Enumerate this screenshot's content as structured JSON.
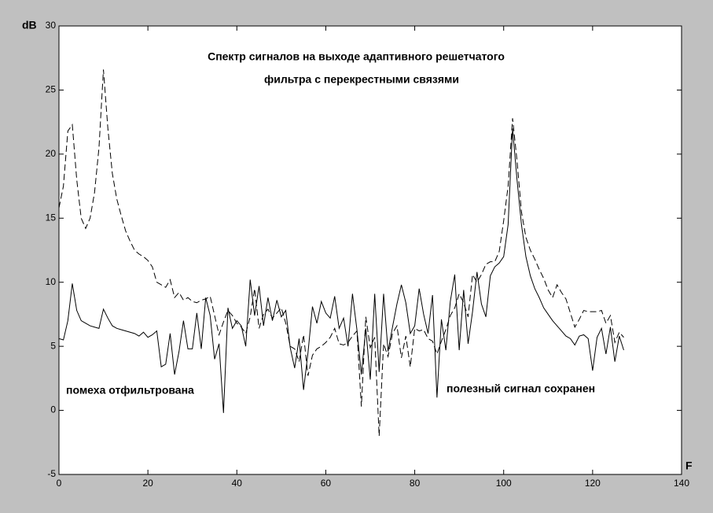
{
  "chart_data": {
    "type": "line",
    "title": [
      "Спектр сигналов на выходе адаптивного решетчатого",
      "фильтра с перекрестными связями"
    ],
    "xlabel": "F",
    "ylabel": "dB",
    "annotations": [
      "помеха отфильтрована",
      "полезный сигнал сохранен"
    ],
    "xlim": [
      0,
      140
    ],
    "xticks": [
      0,
      20,
      40,
      60,
      80,
      100,
      120,
      140
    ],
    "ylim": [
      -5,
      30
    ],
    "yticks": [
      -5,
      0,
      5,
      10,
      15,
      20,
      25,
      30
    ],
    "x": [
      0,
      1,
      2,
      3,
      4,
      5,
      6,
      7,
      8,
      9,
      10,
      11,
      12,
      13,
      14,
      15,
      16,
      17,
      18,
      19,
      20,
      21,
      22,
      23,
      24,
      25,
      26,
      27,
      28,
      29,
      30,
      31,
      32,
      33,
      34,
      35,
      36,
      37,
      38,
      39,
      40,
      41,
      42,
      43,
      44,
      45,
      46,
      47,
      48,
      49,
      50,
      51,
      52,
      53,
      54,
      55,
      56,
      57,
      58,
      59,
      60,
      61,
      62,
      63,
      64,
      65,
      66,
      67,
      68,
      69,
      70,
      71,
      72,
      73,
      74,
      75,
      76,
      77,
      78,
      79,
      80,
      81,
      82,
      83,
      84,
      85,
      86,
      87,
      88,
      89,
      90,
      91,
      92,
      93,
      94,
      95,
      96,
      97,
      98,
      99,
      100,
      101,
      102,
      103,
      104,
      105,
      106,
      107,
      108,
      109,
      110,
      111,
      112,
      113,
      114,
      115,
      116,
      117,
      118,
      119,
      120,
      121,
      122,
      123,
      124,
      125,
      126,
      127
    ],
    "series": [
      {
        "color": "#000000",
        "dashed": false,
        "values": [
          5.6,
          5.5,
          7,
          9.9,
          7.8,
          7,
          6.8,
          6.6,
          6.5,
          6.4,
          7.9,
          7.2,
          6.6,
          6.4,
          6.3,
          6.2,
          6.1,
          6,
          5.8,
          6.1,
          5.7,
          5.9,
          6.2,
          3.4,
          3.6,
          6,
          2.8,
          4.6,
          7,
          4.8,
          4.8,
          7.6,
          4.8,
          8.8,
          7.4,
          4,
          5.2,
          -0.2,
          8,
          6.4,
          7,
          6.6,
          5,
          10.2,
          7.4,
          9.7,
          6.6,
          8.8,
          7,
          8.6,
          7.3,
          7.8,
          4.9,
          3.3,
          5.6,
          1.6,
          4.5,
          8.1,
          6.8,
          8.5,
          7.6,
          7.2,
          8.9,
          6.4,
          7.2,
          5,
          9.1,
          6.3,
          2.8,
          6.4,
          2.4,
          9.1,
          3,
          9.1,
          4.6,
          6.5,
          8.3,
          9.8,
          8.4,
          6,
          6.6,
          9.5,
          7.5,
          6,
          9,
          1,
          7.1,
          4.7,
          8.5,
          10.6,
          4.7,
          9.4,
          5.2,
          7.7,
          10.8,
          8.3,
          7.3,
          10.5,
          11.2,
          11.5,
          12,
          14.5,
          22,
          18,
          14.5,
          12,
          10.5,
          9.5,
          8.8,
          8,
          7.5,
          7,
          6.6,
          6.2,
          5.8,
          5.6,
          5.1,
          5.8,
          5.9,
          5.6,
          3.1,
          5.7,
          6.4,
          4.4,
          6.5,
          3.8,
          5.8,
          4.7
        ]
      },
      {
        "color": "#000000",
        "dashed": true,
        "values": [
          15.8,
          17.5,
          21.8,
          22.3,
          18,
          15,
          14.2,
          15,
          17,
          20.5,
          26.6,
          22,
          18.5,
          16.5,
          15.2,
          14,
          13.2,
          12.5,
          12.2,
          12,
          11.7,
          11.2,
          10,
          9.8,
          9.6,
          10.2,
          8.8,
          9.2,
          8.6,
          8.8,
          8.5,
          8.4,
          8.6,
          8.7,
          8.9,
          7.4,
          5.9,
          6.9,
          7.8,
          7.4,
          6.8,
          6.5,
          6,
          7.3,
          9.5,
          6.4,
          7.5,
          7.9,
          7.2,
          7.6,
          8,
          6.8,
          5,
          4.8,
          3.8,
          5.9,
          2.7,
          4.3,
          4.8,
          5,
          5.3,
          5.7,
          6.4,
          5.2,
          5.1,
          5.3,
          5.8,
          6.2,
          0.3,
          7.3,
          4.9,
          5.7,
          -2,
          5.2,
          4.2,
          6,
          6.6,
          4.1,
          5.8,
          3.4,
          6.4,
          6.2,
          6.3,
          5.6,
          5.4,
          4.4,
          5.4,
          6.3,
          7.4,
          8,
          9.1,
          8.4,
          7.3,
          10.6,
          10,
          10.6,
          11.4,
          11.6,
          11.6,
          12.4,
          14.8,
          17.5,
          22.8,
          19.5,
          15.5,
          13.5,
          12.5,
          11.8,
          11,
          10.3,
          9.4,
          8.8,
          9.8,
          9.2,
          8.7,
          7.6,
          6.5,
          7.1,
          7.8,
          7.7,
          7.7,
          7.7,
          7.8,
          6.8,
          7.4,
          5.3,
          6.1,
          5.7
        ]
      }
    ]
  }
}
